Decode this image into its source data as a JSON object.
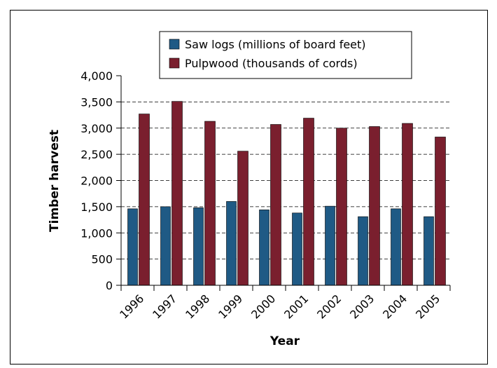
{
  "chart_data": {
    "type": "bar",
    "xlabel": "Year",
    "ylabel": "Timber harvest",
    "categories": [
      "1996",
      "1997",
      "1998",
      "1999",
      "2000",
      "2001",
      "2002",
      "2003",
      "2004",
      "2005"
    ],
    "series": [
      {
        "name": "Saw logs (millions of board feet)",
        "color": "#1f5a85",
        "values": [
          1460,
          1500,
          1480,
          1600,
          1440,
          1380,
          1510,
          1310,
          1460,
          1310
        ]
      },
      {
        "name": "Pulpwood (thousands of cords)",
        "color": "#7a1f2e",
        "values": [
          3270,
          3510,
          3130,
          2560,
          3070,
          3190,
          3000,
          3030,
          3090,
          2830
        ]
      }
    ],
    "ylim": [
      0,
      4000
    ],
    "yticks": [
      0,
      500,
      {
        "value": 1000,
        "label": "1,000"
      },
      {
        "value": 1500,
        "label": "1,500"
      },
      {
        "value": 2000,
        "label": "2,000"
      },
      {
        "value": 2500,
        "label": "2,500"
      },
      {
        "value": 3000,
        "label": "3,000"
      },
      {
        "value": 3500,
        "label": "3,500"
      },
      {
        "value": 4000,
        "label": "4,000"
      }
    ],
    "grid": true,
    "legend": "top"
  }
}
